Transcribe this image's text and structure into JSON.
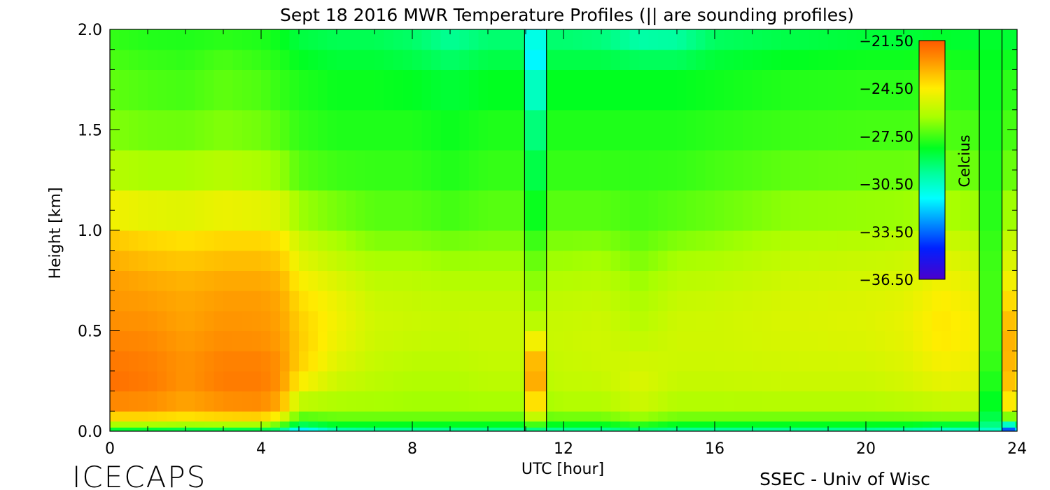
{
  "chart_data": {
    "type": "heatmap",
    "title": "Sept 18 2016 MWR Temperature Profiles (|| are sounding profiles)",
    "xlabel": "UTC [hour]",
    "ylabel": "Height [km]",
    "xlim": [
      0,
      24
    ],
    "ylim": [
      0,
      2
    ],
    "x_ticks": [
      "0",
      "4",
      "8",
      "12",
      "16",
      "20",
      "24"
    ],
    "y_ticks": [
      "0.0",
      "0.5",
      "1.0",
      "1.5",
      "2.0"
    ],
    "colorbar": {
      "label": "Celcius",
      "range": [
        -36.5,
        -21.5
      ],
      "ticks": [
        "-21.50",
        "-24.50",
        "-27.50",
        "-30.50",
        "-33.50",
        "-36.50"
      ]
    },
    "sounding_times": [
      10.97,
      11.55,
      23.0,
      23.6
    ],
    "heights_km": [
      0.0,
      0.02,
      0.05,
      0.1,
      0.2,
      0.3,
      0.4,
      0.5,
      0.6,
      0.7,
      0.8,
      0.9,
      1.0,
      1.2,
      1.4,
      1.6,
      1.8,
      1.9,
      2.0
    ],
    "profiles": [
      {
        "t": 0.0,
        "temps": [
          -29.5,
          -27.5,
          -25.0,
          -23.0,
          -22.0,
          -22.0,
          -22.3,
          -22.5,
          -22.8,
          -22.8,
          -23.0,
          -23.5,
          -24.0,
          -25.5,
          -26.5,
          -27.0,
          -27.3,
          -27.5,
          -27.8
        ]
      },
      {
        "t": 1.0,
        "temps": [
          -29.5,
          -27.5,
          -25.0,
          -23.0,
          -22.2,
          -22.2,
          -22.4,
          -22.6,
          -22.8,
          -23.0,
          -23.3,
          -23.8,
          -24.3,
          -25.8,
          -26.7,
          -27.2,
          -27.5,
          -27.7,
          -28.0
        ]
      },
      {
        "t": 2.0,
        "temps": [
          -30.0,
          -27.5,
          -25.2,
          -23.3,
          -22.8,
          -22.7,
          -22.8,
          -23.0,
          -23.1,
          -23.2,
          -23.5,
          -24.0,
          -24.5,
          -25.8,
          -26.7,
          -27.3,
          -27.6,
          -27.8,
          -28.0
        ]
      },
      {
        "t": 3.0,
        "temps": [
          -30.0,
          -27.5,
          -25.0,
          -23.0,
          -22.3,
          -22.2,
          -22.5,
          -22.7,
          -22.8,
          -23.0,
          -23.3,
          -23.8,
          -24.3,
          -25.5,
          -26.5,
          -27.0,
          -27.3,
          -27.5,
          -28.0
        ]
      },
      {
        "t": 4.0,
        "temps": [
          -30.0,
          -27.5,
          -25.0,
          -22.8,
          -22.3,
          -22.2,
          -22.5,
          -22.8,
          -22.8,
          -23.0,
          -23.3,
          -23.8,
          -24.3,
          -25.8,
          -26.7,
          -27.2,
          -27.5,
          -27.8,
          -28.0
        ]
      },
      {
        "t": 4.5,
        "temps": [
          -30.5,
          -28.0,
          -26.0,
          -23.5,
          -22.8,
          -22.6,
          -22.8,
          -23.0,
          -23.0,
          -23.2,
          -23.5,
          -24.0,
          -24.5,
          -26.0,
          -27.0,
          -27.5,
          -27.8,
          -28.0,
          -28.3
        ]
      },
      {
        "t": 5.0,
        "temps": [
          -33.5,
          -30.0,
          -28.0,
          -26.5,
          -25.0,
          -24.0,
          -23.8,
          -23.8,
          -24.0,
          -24.3,
          -24.8,
          -25.3,
          -25.8,
          -27.0,
          -27.5,
          -27.8,
          -28.0,
          -28.5,
          -28.8
        ]
      },
      {
        "t": 6.0,
        "temps": [
          -31.0,
          -29.0,
          -27.5,
          -26.5,
          -25.8,
          -25.3,
          -25.0,
          -24.8,
          -24.8,
          -25.0,
          -25.5,
          -26.0,
          -26.5,
          -27.3,
          -27.8,
          -28.0,
          -28.3,
          -28.8,
          -29.0
        ]
      },
      {
        "t": 7.0,
        "temps": [
          -30.5,
          -29.0,
          -27.5,
          -26.5,
          -26.0,
          -25.8,
          -25.6,
          -25.5,
          -25.5,
          -25.7,
          -26.0,
          -26.5,
          -27.0,
          -27.5,
          -27.8,
          -28.0,
          -28.3,
          -28.8,
          -29.0
        ]
      },
      {
        "t": 8.0,
        "temps": [
          -30.5,
          -29.0,
          -27.5,
          -26.5,
          -26.2,
          -26.0,
          -25.8,
          -25.6,
          -25.6,
          -25.8,
          -26.0,
          -26.5,
          -27.0,
          -27.5,
          -27.8,
          -28.0,
          -28.5,
          -29.0,
          -29.3
        ]
      },
      {
        "t": 9.0,
        "temps": [
          -30.5,
          -29.0,
          -27.5,
          -26.5,
          -26.2,
          -26.0,
          -25.8,
          -25.7,
          -25.7,
          -25.9,
          -26.2,
          -26.7,
          -27.2,
          -27.8,
          -28.0,
          -28.3,
          -28.8,
          -29.5,
          -30.0
        ]
      },
      {
        "t": 10.0,
        "temps": [
          -30.5,
          -29.0,
          -27.5,
          -26.5,
          -26.0,
          -25.8,
          -25.7,
          -25.6,
          -25.7,
          -25.9,
          -26.2,
          -26.6,
          -27.0,
          -27.5,
          -27.8,
          -28.0,
          -28.5,
          -29.0,
          -29.5
        ]
      },
      {
        "t": 10.97,
        "temps": [
          -30.5,
          -29.0,
          -27.5,
          -26.5,
          -26.0,
          -25.8,
          -25.7,
          -25.6,
          -25.7,
          -25.9,
          -26.2,
          -26.6,
          -27.0,
          -27.5,
          -27.8,
          -28.0,
          -28.5,
          -29.0,
          -29.5
        ]
      },
      {
        "t": 11.55,
        "temps": [
          -30.5,
          -29.0,
          -27.5,
          -26.5,
          -26.0,
          -25.8,
          -25.7,
          -25.6,
          -25.7,
          -25.9,
          -26.2,
          -26.6,
          -27.0,
          -27.5,
          -27.8,
          -28.0,
          -28.5,
          -29.0,
          -29.5
        ]
      },
      {
        "t": 12.0,
        "temps": [
          -30.5,
          -29.0,
          -27.5,
          -26.3,
          -25.8,
          -25.7,
          -25.6,
          -25.6,
          -25.7,
          -25.9,
          -26.2,
          -26.6,
          -27.0,
          -27.5,
          -27.8,
          -28.0,
          -28.5,
          -29.0,
          -29.5
        ]
      },
      {
        "t": 13.0,
        "temps": [
          -30.5,
          -29.0,
          -27.5,
          -26.3,
          -25.8,
          -25.6,
          -25.5,
          -25.5,
          -25.6,
          -25.8,
          -26.1,
          -26.5,
          -27.0,
          -27.5,
          -27.8,
          -28.0,
          -28.5,
          -29.0,
          -29.8
        ]
      },
      {
        "t": 14.0,
        "temps": [
          -30.0,
          -28.5,
          -27.0,
          -25.8,
          -25.2,
          -25.3,
          -25.6,
          -25.9,
          -26.1,
          -26.3,
          -26.6,
          -27.0,
          -27.3,
          -27.6,
          -27.8,
          -28.0,
          -28.5,
          -29.5,
          -30.5
        ]
      },
      {
        "t": 15.0,
        "temps": [
          -30.5,
          -29.0,
          -27.5,
          -26.3,
          -25.8,
          -25.6,
          -25.5,
          -25.5,
          -25.6,
          -25.8,
          -26.1,
          -26.5,
          -27.0,
          -27.5,
          -27.8,
          -28.0,
          -28.5,
          -29.5,
          -30.3
        ]
      },
      {
        "t": 16.0,
        "temps": [
          -30.5,
          -29.0,
          -27.5,
          -26.3,
          -25.8,
          -25.6,
          -25.5,
          -25.5,
          -25.5,
          -25.7,
          -26.0,
          -26.3,
          -26.8,
          -27.3,
          -27.6,
          -27.9,
          -28.3,
          -28.8,
          -29.3
        ]
      },
      {
        "t": 18.0,
        "temps": [
          -30.5,
          -29.0,
          -27.5,
          -26.3,
          -25.7,
          -25.5,
          -25.4,
          -25.3,
          -25.3,
          -25.4,
          -25.6,
          -25.9,
          -26.3,
          -26.9,
          -27.4,
          -27.7,
          -28.0,
          -28.5,
          -29.0
        ]
      },
      {
        "t": 20.0,
        "temps": [
          -30.5,
          -29.0,
          -27.5,
          -26.3,
          -25.7,
          -25.5,
          -25.3,
          -25.2,
          -25.2,
          -25.3,
          -25.5,
          -25.8,
          -26.2,
          -26.8,
          -27.3,
          -27.6,
          -27.9,
          -28.3,
          -28.8
        ]
      },
      {
        "t": 21.0,
        "temps": [
          -31.0,
          -29.0,
          -27.5,
          -26.2,
          -25.5,
          -25.3,
          -25.1,
          -25.0,
          -25.0,
          -25.2,
          -25.4,
          -25.7,
          -26.1,
          -26.8,
          -27.3,
          -27.6,
          -27.9,
          -28.3,
          -28.8
        ]
      },
      {
        "t": 22.0,
        "temps": [
          -31.5,
          -29.5,
          -27.5,
          -26.0,
          -25.2,
          -24.8,
          -24.5,
          -24.3,
          -24.4,
          -24.6,
          -24.9,
          -25.3,
          -25.8,
          -26.6,
          -27.2,
          -27.5,
          -27.8,
          -28.2,
          -28.6
        ]
      },
      {
        "t": 23.0,
        "temps": [
          -31.0,
          -29.5,
          -27.5,
          -26.0,
          -25.3,
          -25.0,
          -24.8,
          -24.7,
          -24.8,
          -25.0,
          -25.3,
          -25.7,
          -26.1,
          -26.8,
          -27.3,
          -27.6,
          -27.9,
          -28.3,
          -28.7
        ]
      },
      {
        "t": 23.6,
        "temps": [
          -31.0,
          -29.5,
          -27.5,
          -26.0,
          -25.3,
          -25.0,
          -24.8,
          -24.7,
          -24.8,
          -25.0,
          -25.3,
          -25.7,
          -26.1,
          -26.8,
          -27.3,
          -27.6,
          -27.9,
          -28.3,
          -28.7
        ]
      },
      {
        "t": 24.0,
        "temps": [
          -34.0,
          -30.5,
          -27.5,
          -25.5,
          -24.5,
          -23.8,
          -23.6,
          -23.5,
          -24.0,
          -24.5,
          -25.0,
          -25.5,
          -26.0,
          -26.8,
          -27.3,
          -27.6,
          -27.9,
          -28.3,
          -28.7
        ]
      }
    ],
    "sounding_strips": [
      {
        "t0": 10.97,
        "t1": 11.55,
        "temps": [
          -30.5,
          -28.5,
          -26.5,
          -25.0,
          -23.5,
          -23.0,
          -24.0,
          -25.5,
          -26.3,
          -26.5,
          -26.8,
          -27.3,
          -27.8,
          -28.5,
          -29.0,
          -29.8,
          -31.0,
          -32.0,
          -30.0
        ]
      },
      {
        "t0": 23.0,
        "t1": 23.6,
        "temps": [
          -31.0,
          -30.0,
          -29.0,
          -28.5,
          -28.0,
          -27.8,
          -27.5,
          -27.5,
          -27.5,
          -27.5,
          -27.5,
          -27.6,
          -27.7,
          -27.9,
          -28.0,
          -28.1,
          -28.2,
          -28.3,
          -28.5
        ]
      },
      {
        "t0": 23.6,
        "t1": 23.95,
        "temps": [
          -35.0,
          -32.5,
          -28.5,
          -25.0,
          -23.8,
          -23.5,
          -23.3,
          -23.4,
          -23.8,
          -24.5,
          -25.0,
          -25.5,
          -26.0,
          -26.8,
          -27.3,
          -27.6,
          -27.9,
          -28.3,
          -28.7
        ]
      }
    ]
  },
  "footer": {
    "left_brand": "ICECAPS",
    "right_credit": "SSEC - Univ of Wisc"
  }
}
